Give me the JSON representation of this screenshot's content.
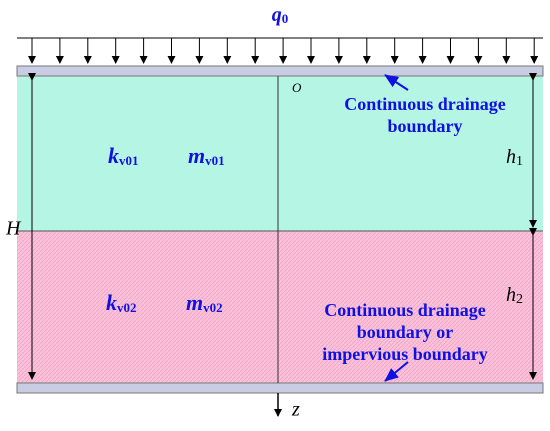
{
  "load": {
    "symbol": "q",
    "subscript": "0"
  },
  "origin": "O",
  "axis": "z",
  "total_thickness": "H",
  "layer1": {
    "k": {
      "symbol": "k",
      "subscript": "v01"
    },
    "m": {
      "symbol": "m",
      "subscript": "v01"
    },
    "thickness": {
      "symbol": "h",
      "subscript": "1"
    }
  },
  "layer2": {
    "k": {
      "symbol": "k",
      "subscript": "v02"
    },
    "m": {
      "symbol": "m",
      "subscript": "v02"
    },
    "thickness": {
      "symbol": "h",
      "subscript": "2"
    }
  },
  "top_boundary": {
    "lines": [
      "Continuous drainage",
      "boundary"
    ]
  },
  "bottom_boundary": {
    "lines": [
      "Continuous drainage",
      "boundary or",
      "impervious boundary"
    ]
  }
}
